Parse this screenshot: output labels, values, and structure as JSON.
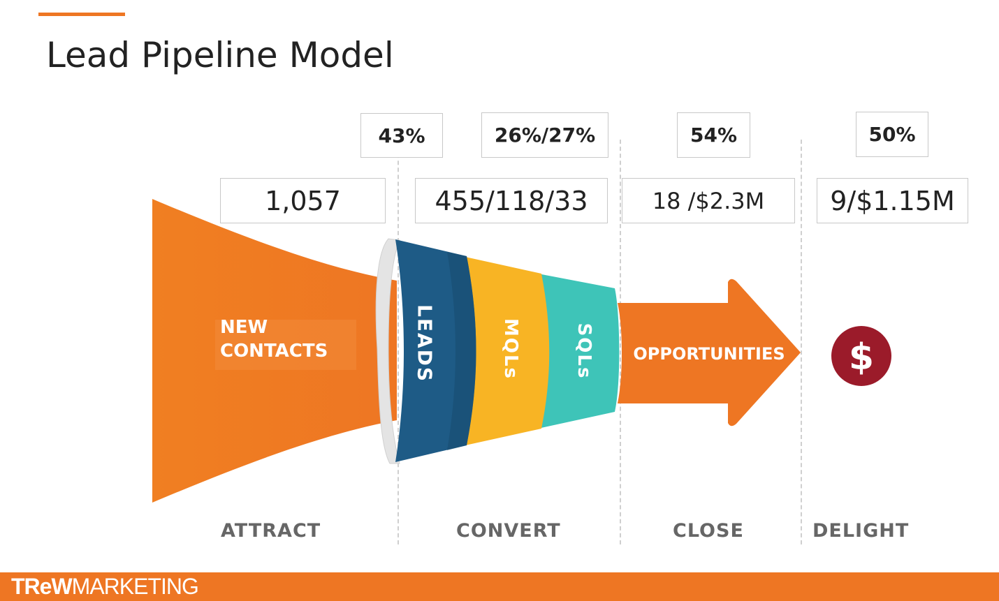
{
  "title": "Lead Pipeline Model",
  "conversion_rates": {
    "leads": "43%",
    "mql_sql": "26%/27%",
    "opportunities": "54%",
    "delight": "50%"
  },
  "counts": {
    "new_contacts": "1,057",
    "leads_mql_sql": "455/118/33",
    "opportunities": "18 /$2.3M",
    "closed": "9/$1.15M"
  },
  "funnel": {
    "new_contacts_line1": "NEW",
    "new_contacts_line2": "CONTACTS",
    "leads": "LEADS",
    "mqls": "MQLs",
    "sqls": "SQLs",
    "opportunities": "OPPORTUNITIES",
    "dollar": "$"
  },
  "stages": {
    "attract": "ATTRACT",
    "convert": "CONVERT",
    "close": "CLOSE",
    "delight": "DELIGHT"
  },
  "footer": {
    "logo_trew": "TReW",
    "logo_marketing": "MARKETING"
  },
  "colors": {
    "orange": "#EE7623",
    "leads": "#1E5B86",
    "mqls": "#F8B424",
    "sqls": "#3EC4B8",
    "dollar": "#9B1B2A",
    "stage_text": "#666666"
  }
}
